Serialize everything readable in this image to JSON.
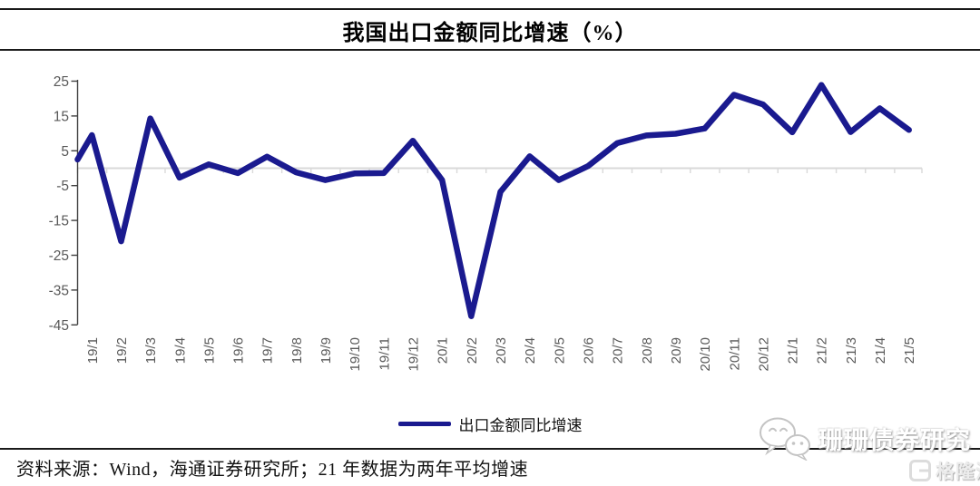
{
  "header": {
    "title": "我国出口金额同比增速（%）"
  },
  "chart_data": {
    "type": "line",
    "title": "我国出口金额同比增速（%）",
    "categories": [
      "19/1",
      "19/2",
      "19/3",
      "19/4",
      "19/5",
      "19/6",
      "19/7",
      "19/8",
      "19/9",
      "19/10",
      "19/11",
      "19/12",
      "20/1",
      "20/2",
      "20/3",
      "20/4",
      "20/5",
      "20/6",
      "20/7",
      "20/8",
      "20/9",
      "20/10",
      "20/11",
      "20/12",
      "21/1",
      "21/2",
      "21/3",
      "21/4",
      "21/5"
    ],
    "series": [
      {
        "name": "出口金额同比增速",
        "values": [
          9.5,
          -21.0,
          14.3,
          -2.7,
          1.1,
          -1.4,
          3.3,
          -1.2,
          -3.4,
          -1.5,
          -1.4,
          7.9,
          -3.4,
          -42.5,
          -6.8,
          3.4,
          -3.4,
          0.6,
          7.2,
          9.4,
          9.9,
          11.4,
          21.1,
          18.3,
          10.3,
          23.9,
          10.4,
          17.2,
          11.0
        ]
      }
    ],
    "lead_in_value": 2.5,
    "ylim": [
      -45,
      25
    ],
    "yticks": [
      25,
      15,
      5,
      -5,
      -15,
      -25,
      -35,
      -45
    ],
    "xlabel": "",
    "ylabel": "",
    "grid": "zero-line-only",
    "legend_position": "bottom"
  },
  "legend": {
    "label": "出口金额同比增速"
  },
  "footer": {
    "source_note": "资料来源：Wind，海通证券研究所；21 年数据为两年平均增速"
  },
  "watermark": {
    "account_name": "珊珊债券研究",
    "platform": "格隆汇"
  },
  "colors": {
    "line": "#1a1a8f",
    "axis": "#404040",
    "tick_label": "#595959",
    "zero_line": "#d9d9d9",
    "rule": "#1a1a1a"
  }
}
